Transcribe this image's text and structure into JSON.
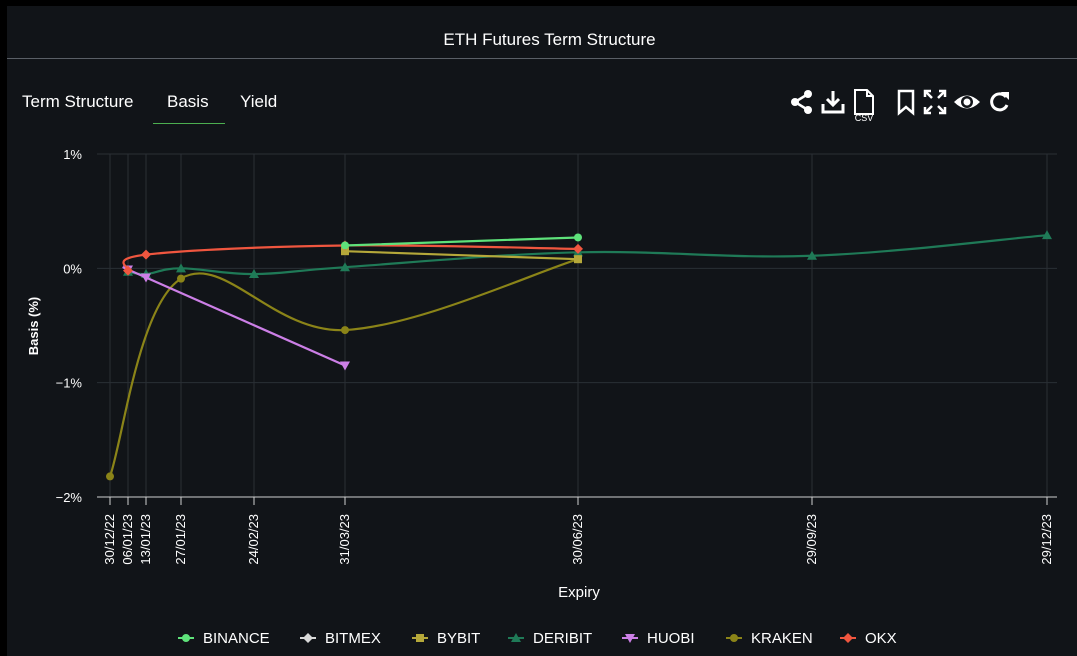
{
  "title": "ETH Futures Term Structure",
  "tabs": [
    {
      "label": "Term Structure",
      "active": false
    },
    {
      "label": "Basis",
      "active": true
    },
    {
      "label": "Yield",
      "active": false
    }
  ],
  "toolbar": {
    "icons": [
      "share-icon",
      "download-icon",
      "csv-icon",
      "bookmark-icon",
      "fullscreen-icon",
      "eye-icon",
      "refresh-icon"
    ],
    "csv_label": "CSV"
  },
  "colors": {
    "background": "#111418",
    "tab_underline": "#4caf50",
    "grid": "#2a2f35"
  },
  "chart_data": {
    "type": "line",
    "xlabel": "Expiry",
    "ylabel": "Basis (%)",
    "ylim": [
      -2,
      1
    ],
    "yticks": [
      {
        "value": 1,
        "label": "1%"
      },
      {
        "value": 0,
        "label": "0%"
      },
      {
        "value": -1,
        "label": "−1%"
      },
      {
        "value": -2,
        "label": "−2%"
      }
    ],
    "x_categories": [
      "30/12/22",
      "06/01/23",
      "13/01/23",
      "27/01/23",
      "24/02/23",
      "31/03/23",
      "30/06/23",
      "29/09/23",
      "29/12/23"
    ],
    "grid": true,
    "legend_position": "bottom",
    "series": [
      {
        "name": "BINANCE",
        "color": "#5ee27a",
        "marker": "circle",
        "points": [
          [
            "31/03/23",
            0.2
          ],
          [
            "30/06/23",
            0.27
          ]
        ]
      },
      {
        "name": "BITMEX",
        "color": "#d9d9d9",
        "marker": "diamond",
        "points": []
      },
      {
        "name": "BYBIT",
        "color": "#b5a83a",
        "marker": "square",
        "points": [
          [
            "31/03/23",
            0.15
          ],
          [
            "30/06/23",
            0.08
          ]
        ]
      },
      {
        "name": "DERIBIT",
        "color": "#1f7a57",
        "marker": "triangle",
        "points": [
          [
            "06/01/23",
            -0.03
          ],
          [
            "13/01/23",
            -0.05
          ],
          [
            "27/01/23",
            0.0
          ],
          [
            "24/02/23",
            -0.05
          ],
          [
            "31/03/23",
            0.01
          ],
          [
            "30/06/23",
            0.14
          ],
          [
            "29/09/23",
            0.11
          ],
          [
            "29/12/23",
            0.29
          ]
        ]
      },
      {
        "name": "HUOBI",
        "color": "#cc7fe6",
        "marker": "triangle-down",
        "points": [
          [
            "06/01/23",
            -0.01
          ],
          [
            "13/01/23",
            -0.08
          ],
          [
            "31/03/23",
            -0.85
          ]
        ]
      },
      {
        "name": "KRAKEN",
        "color": "#8b8418",
        "marker": "circle",
        "points": [
          [
            "30/12/22",
            -1.82
          ],
          [
            "27/01/23",
            -0.09
          ],
          [
            "31/03/23",
            -0.54
          ],
          [
            "30/06/23",
            0.08
          ]
        ]
      },
      {
        "name": "OKX",
        "color": "#f0563f",
        "marker": "diamond",
        "points": [
          [
            "06/01/23",
            -0.02
          ],
          [
            "13/01/23",
            0.12
          ],
          [
            "31/03/23",
            0.2
          ],
          [
            "30/06/23",
            0.17
          ]
        ]
      }
    ]
  }
}
